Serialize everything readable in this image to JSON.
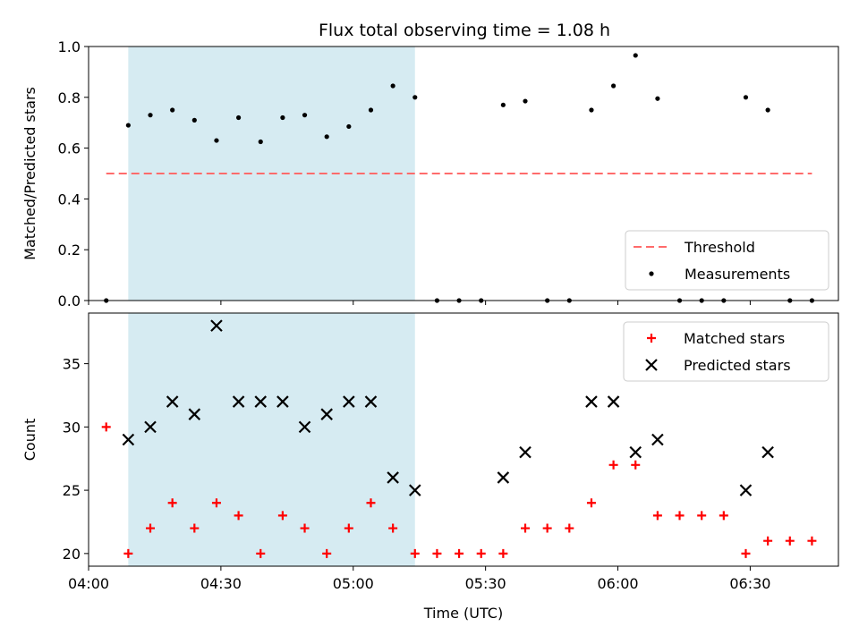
{
  "title": "Flux total observing time = 1.08 h",
  "chart_data": [
    {
      "type": "scatter",
      "title": "Flux total observing time = 1.08 h",
      "xlabel": "",
      "ylabel": "Matched/Predicted stars",
      "xlim": [
        "04:00",
        "06:50"
      ],
      "ylim": [
        0,
        1.0
      ],
      "yticks": [
        "0.0",
        "0.2",
        "0.4",
        "0.6",
        "0.8",
        "1.0"
      ],
      "shaded_span": [
        "04:09",
        "05:14"
      ],
      "threshold": {
        "name": "Threshold",
        "value": 0.5,
        "x_range": [
          "04:04",
          "06:44"
        ],
        "color": "#ff6b6b"
      },
      "legend": {
        "placement": "lower right",
        "entries": [
          "Threshold",
          "Measurements"
        ]
      },
      "series": [
        {
          "name": "Measurements",
          "color": "#000000",
          "x": [
            "04:04",
            "04:09",
            "04:14",
            "04:19",
            "04:24",
            "04:29",
            "04:34",
            "04:39",
            "04:44",
            "04:49",
            "04:54",
            "04:59",
            "05:04",
            "05:09",
            "05:14",
            "05:19",
            "05:24",
            "05:29",
            "05:34",
            "05:39",
            "05:44",
            "05:49",
            "05:54",
            "05:59",
            "06:04",
            "06:09",
            "06:14",
            "06:19",
            "06:24",
            "06:29",
            "06:34",
            "06:39",
            "06:44"
          ],
          "y": [
            0,
            0.69,
            0.73,
            0.75,
            0.71,
            0.63,
            0.72,
            0.625,
            0.72,
            0.73,
            0.645,
            0.685,
            0.75,
            0.845,
            0.8,
            0,
            0,
            0,
            0.77,
            0.785,
            0,
            0,
            0.75,
            0.845,
            0.965,
            0.795,
            0,
            0,
            0,
            0.8,
            0.75,
            0,
            0
          ]
        }
      ]
    },
    {
      "type": "scatter",
      "title": "",
      "xlabel": "Time (UTC)",
      "ylabel": "Count",
      "xlim": [
        "04:00",
        "06:50"
      ],
      "ylim": [
        19,
        39
      ],
      "yticks": [
        "20",
        "25",
        "30",
        "35"
      ],
      "xticks": [
        "04:00",
        "04:30",
        "05:00",
        "05:30",
        "06:00",
        "06:30"
      ],
      "shaded_span": [
        "04:09",
        "05:14"
      ],
      "legend": {
        "placement": "upper right",
        "entries": [
          "Matched stars",
          "Predicted stars"
        ]
      },
      "series": [
        {
          "name": "Matched stars",
          "marker": "plus",
          "color": "#ff0000",
          "x": [
            "04:04",
            "04:09",
            "04:14",
            "04:19",
            "04:24",
            "04:29",
            "04:34",
            "04:39",
            "04:44",
            "04:49",
            "04:54",
            "04:59",
            "05:04",
            "05:09",
            "05:14",
            "05:19",
            "05:24",
            "05:29",
            "05:34",
            "05:39",
            "05:44",
            "05:49",
            "05:54",
            "05:59",
            "06:04",
            "06:09",
            "06:14",
            "06:19",
            "06:24",
            "06:29",
            "06:34",
            "06:39",
            "06:44"
          ],
          "y": [
            30,
            20,
            22,
            24,
            22,
            24,
            23,
            20,
            23,
            22,
            20,
            22,
            24,
            22,
            20,
            20,
            20,
            20,
            20,
            22,
            22,
            22,
            24,
            27,
            27,
            23,
            23,
            23,
            23,
            20,
            21,
            21,
            21
          ]
        },
        {
          "name": "Predicted stars",
          "marker": "x",
          "color": "#000000",
          "x": [
            "04:09",
            "04:14",
            "04:19",
            "04:24",
            "04:29",
            "04:34",
            "04:39",
            "04:44",
            "04:49",
            "04:54",
            "04:59",
            "05:04",
            "05:09",
            "05:14",
            "05:34",
            "05:39",
            "05:54",
            "05:59",
            "06:04",
            "06:09",
            "06:29",
            "06:34"
          ],
          "y": [
            29,
            30,
            32,
            31,
            38,
            32,
            32,
            32,
            30,
            31,
            32,
            32,
            26,
            25,
            26,
            28,
            32,
            32,
            28,
            29,
            25,
            28
          ]
        }
      ]
    }
  ]
}
